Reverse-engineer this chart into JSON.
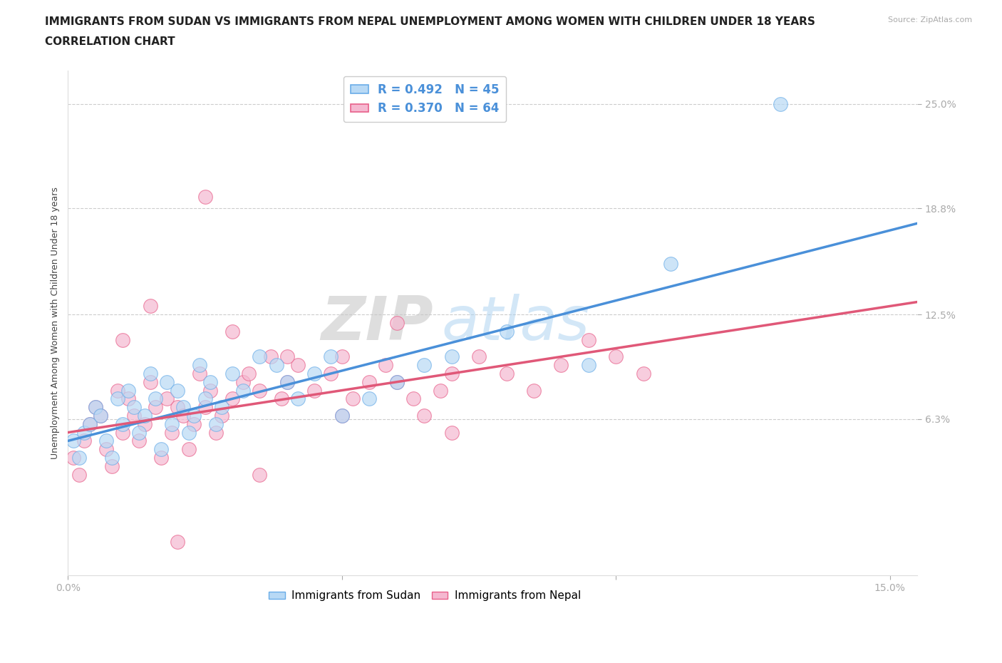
{
  "title_line1": "IMMIGRANTS FROM SUDAN VS IMMIGRANTS FROM NEPAL UNEMPLOYMENT AMONG WOMEN WITH CHILDREN UNDER 18 YEARS",
  "title_line2": "CORRELATION CHART",
  "source": "Source: ZipAtlas.com",
  "ylabel": "Unemployment Among Women with Children Under 18 years",
  "xlim": [
    0.0,
    0.155
  ],
  "ylim": [
    -0.03,
    0.27
  ],
  "sudan_color": "#b8d9f5",
  "nepal_color": "#f5b8d0",
  "sudan_edge_color": "#6aade8",
  "nepal_edge_color": "#e8608a",
  "sudan_line_color": "#4a90d9",
  "nepal_line_color": "#e05878",
  "sudan_R": 0.492,
  "sudan_N": 45,
  "nepal_R": 0.37,
  "nepal_N": 64,
  "legend_text_color": "#4a90d9",
  "watermark_zip": "ZIP",
  "watermark_atlas": "atlas",
  "grid_color": "#cccccc",
  "bg_color": "#ffffff",
  "title_fontsize": 11,
  "axis_label_fontsize": 9,
  "tick_fontsize": 10,
  "sudan_scatter_x": [
    0.001,
    0.002,
    0.003,
    0.004,
    0.005,
    0.006,
    0.007,
    0.008,
    0.009,
    0.01,
    0.011,
    0.012,
    0.013,
    0.014,
    0.015,
    0.016,
    0.017,
    0.018,
    0.019,
    0.02,
    0.021,
    0.022,
    0.023,
    0.024,
    0.025,
    0.026,
    0.027,
    0.028,
    0.03,
    0.032,
    0.035,
    0.038,
    0.04,
    0.042,
    0.045,
    0.048,
    0.05,
    0.055,
    0.06,
    0.065,
    0.07,
    0.08,
    0.095,
    0.11,
    0.13
  ],
  "sudan_scatter_y": [
    0.05,
    0.04,
    0.055,
    0.06,
    0.07,
    0.065,
    0.05,
    0.04,
    0.075,
    0.06,
    0.08,
    0.07,
    0.055,
    0.065,
    0.09,
    0.075,
    0.045,
    0.085,
    0.06,
    0.08,
    0.07,
    0.055,
    0.065,
    0.095,
    0.075,
    0.085,
    0.06,
    0.07,
    0.09,
    0.08,
    0.1,
    0.095,
    0.085,
    0.075,
    0.09,
    0.1,
    0.065,
    0.075,
    0.085,
    0.095,
    0.1,
    0.115,
    0.095,
    0.155,
    0.25
  ],
  "nepal_scatter_x": [
    0.001,
    0.002,
    0.003,
    0.004,
    0.005,
    0.006,
    0.007,
    0.008,
    0.009,
    0.01,
    0.011,
    0.012,
    0.013,
    0.014,
    0.015,
    0.016,
    0.017,
    0.018,
    0.019,
    0.02,
    0.021,
    0.022,
    0.023,
    0.024,
    0.025,
    0.026,
    0.027,
    0.028,
    0.03,
    0.032,
    0.033,
    0.035,
    0.037,
    0.039,
    0.04,
    0.042,
    0.045,
    0.048,
    0.05,
    0.052,
    0.055,
    0.058,
    0.06,
    0.063,
    0.065,
    0.068,
    0.07,
    0.075,
    0.08,
    0.085,
    0.09,
    0.095,
    0.1,
    0.105,
    0.02,
    0.03,
    0.04,
    0.05,
    0.06,
    0.07,
    0.01,
    0.015,
    0.025,
    0.035
  ],
  "nepal_scatter_y": [
    0.04,
    0.03,
    0.05,
    0.06,
    0.07,
    0.065,
    0.045,
    0.035,
    0.08,
    0.055,
    0.075,
    0.065,
    0.05,
    0.06,
    0.085,
    0.07,
    0.04,
    0.075,
    0.055,
    0.07,
    0.065,
    0.045,
    0.06,
    0.09,
    0.07,
    0.08,
    0.055,
    0.065,
    0.075,
    0.085,
    0.09,
    0.08,
    0.1,
    0.075,
    0.085,
    0.095,
    0.08,
    0.09,
    0.1,
    0.075,
    0.085,
    0.095,
    0.085,
    0.075,
    0.065,
    0.08,
    0.09,
    0.1,
    0.09,
    0.08,
    0.095,
    0.11,
    0.1,
    0.09,
    -0.01,
    0.115,
    0.1,
    0.065,
    0.12,
    0.055,
    0.11,
    0.13,
    0.195,
    0.03
  ],
  "y_ticks": [
    0.063,
    0.125,
    0.188,
    0.25
  ],
  "y_tick_labels": [
    "6.3%",
    "12.5%",
    "18.8%",
    "25.0%"
  ],
  "x_ticks": [
    0.0,
    0.05,
    0.1,
    0.15
  ],
  "x_tick_labels": [
    "0.0%",
    "",
    "",
    "15.0%"
  ]
}
